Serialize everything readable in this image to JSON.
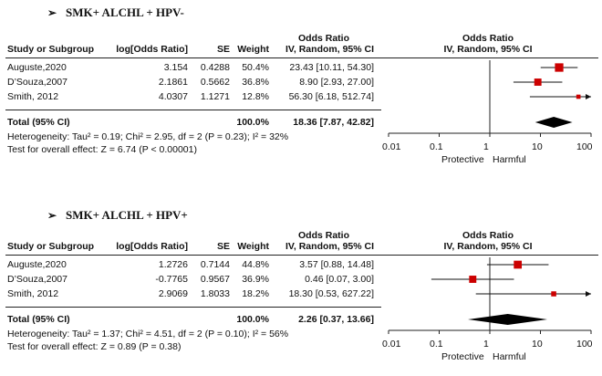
{
  "panels": [
    {
      "heading": "SMK+ ALCHL + HPV-",
      "header": {
        "or_title": "Odds Ratio",
        "study": "Study or Subgroup",
        "logor": "log[Odds Ratio]",
        "se": "SE",
        "weight": "Weight",
        "method": "IV, Random, 95% CI",
        "plot_title": "Odds Ratio",
        "plot_method": "IV, Random, 95% CI"
      },
      "rows": [
        {
          "study": "Auguste,2020",
          "logor": "3.154",
          "se": "0.4288",
          "weight": "50.4%",
          "ci_text": "23.43 [10.11, 54.30]"
        },
        {
          "study": "D’Souza,2007",
          "logor": "2.1861",
          "se": "0.5662",
          "weight": "36.8%",
          "ci_text": "8.90 [2.93, 27.00]"
        },
        {
          "study": "Smith, 2012",
          "logor": "4.0307",
          "se": "1.1271",
          "weight": "12.8%",
          "ci_text": "56.30 [6.18, 512.74]"
        }
      ],
      "total": {
        "label": "Total (95% CI)",
        "weight": "100.0%",
        "ci_text": "18.36 [7.87, 42.82]"
      },
      "heterogeneity": "Heterogeneity: Tau² = 0.19; Chi² = 2.95, df = 2 (P = 0.23); I² = 32%",
      "overall_effect": "Test for overall effect: Z = 6.74 (P < 0.00001)",
      "axis": {
        "ticks": [
          "0.01",
          "0.1",
          "1",
          "10",
          "100"
        ],
        "left_label": "Protective",
        "right_label": "Harmful"
      }
    },
    {
      "heading": "SMK+ ALCHL + HPV+",
      "header": {
        "or_title": "Odds Ratio",
        "study": "Study or Subgroup",
        "logor": "log[Odds Ratio]",
        "se": "SE",
        "weight": "Weight",
        "method": "IV, Random, 95% CI",
        "plot_title": "Odds Ratio",
        "plot_method": "IV, Random, 95% CI"
      },
      "rows": [
        {
          "study": "Auguste,2020",
          "logor": "1.2726",
          "se": "0.7144",
          "weight": "44.8%",
          "ci_text": "3.57 [0.88, 14.48]"
        },
        {
          "study": "D’Souza,2007",
          "logor": "-0.7765",
          "se": "0.9567",
          "weight": "36.9%",
          "ci_text": "0.46 [0.07, 3.00]"
        },
        {
          "study": "Smith, 2012",
          "logor": "2.9069",
          "se": "1.8033",
          "weight": "18.2%",
          "ci_text": "18.30 [0.53, 627.22]"
        }
      ],
      "total": {
        "label": "Total (95% CI)",
        "weight": "100.0%",
        "ci_text": "2.26 [0.37, 13.66]"
      },
      "heterogeneity": "Heterogeneity: Tau² = 1.37; Chi² = 4.51, df = 2 (P = 0.10); I² = 56%",
      "overall_effect": "Test for overall effect: Z = 0.89 (P = 0.38)",
      "axis": {
        "ticks": [
          "0.01",
          "0.1",
          "1",
          "10",
          "100"
        ],
        "left_label": "Protective",
        "right_label": "Harmful"
      }
    }
  ],
  "chart_data": [
    {
      "type": "forest",
      "scale": "log",
      "xlim": [
        0.01,
        100
      ],
      "marker_color": "#cc0000",
      "studies": [
        {
          "name": "Auguste,2020",
          "or": 23.43,
          "lo": 10.11,
          "hi": 54.3,
          "weight": 50.4
        },
        {
          "name": "D’Souza,2007",
          "or": 8.9,
          "lo": 2.93,
          "hi": 27.0,
          "weight": 36.8
        },
        {
          "name": "Smith, 2012",
          "or": 56.3,
          "lo": 6.18,
          "hi": 512.74,
          "weight": 12.8
        }
      ],
      "pooled": {
        "or": 18.36,
        "lo": 7.87,
        "hi": 42.82
      }
    },
    {
      "type": "forest",
      "scale": "log",
      "xlim": [
        0.01,
        100
      ],
      "marker_color": "#cc0000",
      "studies": [
        {
          "name": "Auguste,2020",
          "or": 3.57,
          "lo": 0.88,
          "hi": 14.48,
          "weight": 44.8
        },
        {
          "name": "D’Souza,2007",
          "or": 0.46,
          "lo": 0.07,
          "hi": 3.0,
          "weight": 36.9
        },
        {
          "name": "Smith, 2012",
          "or": 18.3,
          "lo": 0.53,
          "hi": 627.22,
          "weight": 18.2
        }
      ],
      "pooled": {
        "or": 2.26,
        "lo": 0.37,
        "hi": 13.66
      }
    }
  ]
}
